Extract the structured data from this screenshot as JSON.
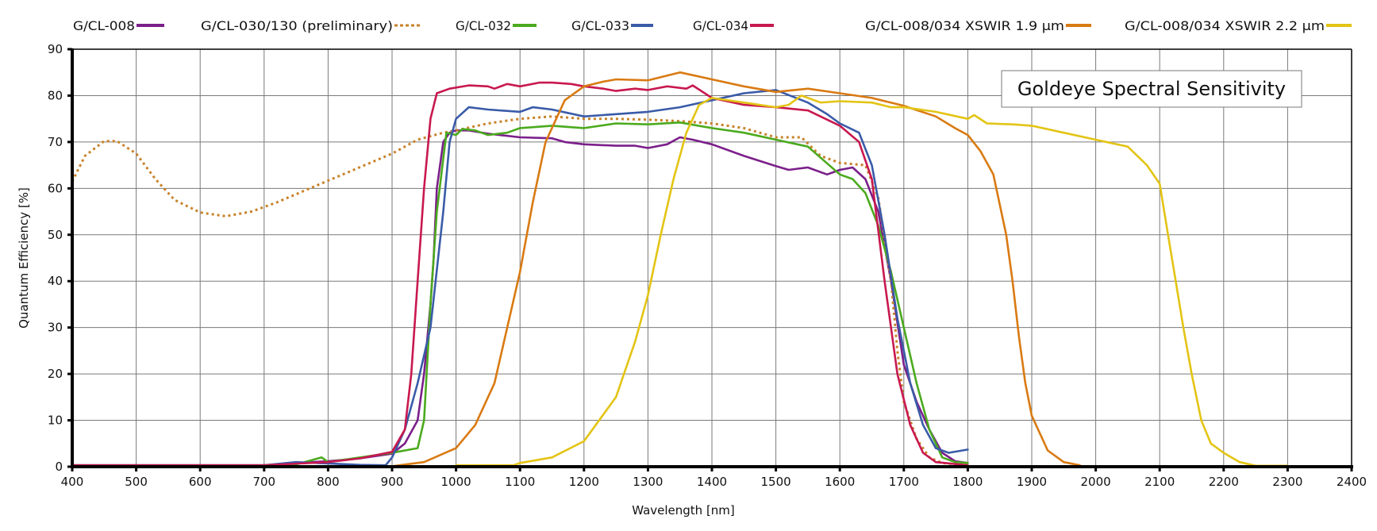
{
  "chart_data": {
    "type": "line",
    "title": "Goldeye Spectral Sensitivity",
    "xlabel": "Wavelength [nm]",
    "ylabel": "Quantum Efficiency [%]",
    "xlim": [
      400,
      2400
    ],
    "ylim": [
      0,
      90
    ],
    "xticks": [
      "400",
      "500",
      "600",
      "700",
      "800",
      "900",
      "1000",
      "1100",
      "1200",
      "1300",
      "1400",
      "1500",
      "1600",
      "1700",
      "1800",
      "1900",
      "2000",
      "2100",
      "2200",
      "2300",
      "2400"
    ],
    "yticks": [
      "0",
      "10",
      "20",
      "30",
      "40",
      "50",
      "60",
      "70",
      "80",
      "90"
    ],
    "grid": true,
    "legend_position": "top",
    "series": [
      {
        "name": "G/CL-008",
        "color": "#7B1F8A",
        "dashed": false,
        "points": [
          [
            400,
            0.3
          ],
          [
            700,
            0.3
          ],
          [
            750,
            0.8
          ],
          [
            800,
            1.2
          ],
          [
            850,
            1.8
          ],
          [
            900,
            2.8
          ],
          [
            920,
            5
          ],
          [
            940,
            10
          ],
          [
            950,
            20
          ],
          [
            960,
            35
          ],
          [
            965,
            45
          ],
          [
            970,
            60
          ],
          [
            980,
            70
          ],
          [
            990,
            72
          ],
          [
            1000,
            72.5
          ],
          [
            1020,
            72.5
          ],
          [
            1050,
            71.8
          ],
          [
            1100,
            71
          ],
          [
            1150,
            70.8
          ],
          [
            1170,
            70
          ],
          [
            1200,
            69.5
          ],
          [
            1250,
            69.2
          ],
          [
            1280,
            69.2
          ],
          [
            1300,
            68.7
          ],
          [
            1330,
            69.5
          ],
          [
            1350,
            71
          ],
          [
            1370,
            70.5
          ],
          [
            1400,
            69.5
          ],
          [
            1450,
            67
          ],
          [
            1500,
            64.8
          ],
          [
            1520,
            64
          ],
          [
            1550,
            64.5
          ],
          [
            1580,
            63
          ],
          [
            1600,
            64
          ],
          [
            1620,
            64.5
          ],
          [
            1640,
            62
          ],
          [
            1660,
            55
          ],
          [
            1680,
            40
          ],
          [
            1700,
            22
          ],
          [
            1720,
            14
          ],
          [
            1740,
            8
          ],
          [
            1760,
            3
          ],
          [
            1780,
            1.2
          ],
          [
            1800,
            0.8
          ]
        ]
      },
      {
        "name": "G/CL-030/130 (preliminary)",
        "color": "#C8822A",
        "dashed": true,
        "points": [
          [
            400,
            61.5
          ],
          [
            420,
            67
          ],
          [
            450,
            70.2
          ],
          [
            470,
            70.2
          ],
          [
            500,
            67.5
          ],
          [
            530,
            62
          ],
          [
            560,
            57.5
          ],
          [
            600,
            54.8
          ],
          [
            640,
            54
          ],
          [
            680,
            55
          ],
          [
            720,
            57
          ],
          [
            780,
            60.5
          ],
          [
            840,
            64
          ],
          [
            900,
            67.5
          ],
          [
            940,
            70.5
          ],
          [
            980,
            72
          ],
          [
            1000,
            72.5
          ],
          [
            1050,
            74
          ],
          [
            1100,
            75
          ],
          [
            1150,
            75.5
          ],
          [
            1200,
            75
          ],
          [
            1250,
            75
          ],
          [
            1300,
            74.8
          ],
          [
            1350,
            74.5
          ],
          [
            1400,
            74
          ],
          [
            1450,
            73
          ],
          [
            1500,
            71
          ],
          [
            1540,
            71
          ],
          [
            1570,
            67
          ],
          [
            1600,
            65.5
          ],
          [
            1640,
            65
          ],
          [
            1660,
            58
          ],
          [
            1680,
            40
          ],
          [
            1690,
            25
          ],
          [
            1700,
            14
          ],
          [
            1720,
            6
          ],
          [
            1740,
            2
          ],
          [
            1760,
            0.8
          ],
          [
            1800,
            0.3
          ]
        ]
      },
      {
        "name": "G/CL-032",
        "color": "#4BAA1E",
        "dashed": false,
        "points": [
          [
            700,
            0
          ],
          [
            750,
            0.5
          ],
          [
            790,
            2
          ],
          [
            800,
            1
          ],
          [
            850,
            2
          ],
          [
            900,
            3
          ],
          [
            940,
            4
          ],
          [
            950,
            10
          ],
          [
            960,
            35
          ],
          [
            970,
            55
          ],
          [
            985,
            72
          ],
          [
            1000,
            71.5
          ],
          [
            1010,
            72.8
          ],
          [
            1030,
            72.5
          ],
          [
            1050,
            71.5
          ],
          [
            1080,
            72
          ],
          [
            1100,
            73
          ],
          [
            1150,
            73.5
          ],
          [
            1200,
            73
          ],
          [
            1250,
            74
          ],
          [
            1300,
            73.8
          ],
          [
            1350,
            74.2
          ],
          [
            1400,
            73
          ],
          [
            1450,
            72
          ],
          [
            1500,
            70.5
          ],
          [
            1550,
            69
          ],
          [
            1600,
            63
          ],
          [
            1620,
            62
          ],
          [
            1640,
            59
          ],
          [
            1660,
            52
          ],
          [
            1680,
            42
          ],
          [
            1700,
            30
          ],
          [
            1720,
            18
          ],
          [
            1740,
            8
          ],
          [
            1760,
            2
          ],
          [
            1780,
            1
          ],
          [
            1800,
            0.8
          ]
        ]
      },
      {
        "name": "G/CL-033",
        "color": "#3A5BA8",
        "dashed": false,
        "points": [
          [
            400,
            0.3
          ],
          [
            700,
            0.3
          ],
          [
            750,
            1
          ],
          [
            800,
            0.7
          ],
          [
            850,
            0.4
          ],
          [
            890,
            0.3
          ],
          [
            900,
            2
          ],
          [
            920,
            8
          ],
          [
            940,
            18
          ],
          [
            960,
            30
          ],
          [
            980,
            55
          ],
          [
            990,
            70
          ],
          [
            1000,
            75
          ],
          [
            1020,
            77.5
          ],
          [
            1050,
            77
          ],
          [
            1100,
            76.5
          ],
          [
            1120,
            77.5
          ],
          [
            1150,
            77
          ],
          [
            1200,
            75.5
          ],
          [
            1250,
            76
          ],
          [
            1300,
            76.5
          ],
          [
            1350,
            77.5
          ],
          [
            1400,
            79
          ],
          [
            1450,
            80.5
          ],
          [
            1500,
            81.2
          ],
          [
            1550,
            78.5
          ],
          [
            1580,
            76
          ],
          [
            1600,
            74
          ],
          [
            1630,
            72
          ],
          [
            1650,
            65
          ],
          [
            1670,
            50
          ],
          [
            1690,
            32
          ],
          [
            1710,
            18
          ],
          [
            1730,
            9
          ],
          [
            1750,
            4
          ],
          [
            1770,
            3
          ],
          [
            1800,
            3.7
          ]
        ]
      },
      {
        "name": "G/CL-034",
        "color": "#C8184F",
        "dashed": false,
        "points": [
          [
            400,
            0.3
          ],
          [
            700,
            0.3
          ],
          [
            800,
            1
          ],
          [
            850,
            1.8
          ],
          [
            900,
            3.2
          ],
          [
            920,
            8
          ],
          [
            930,
            20
          ],
          [
            940,
            40
          ],
          [
            950,
            60
          ],
          [
            960,
            75
          ],
          [
            970,
            80.5
          ],
          [
            990,
            81.5
          ],
          [
            1020,
            82.2
          ],
          [
            1050,
            82
          ],
          [
            1060,
            81.5
          ],
          [
            1080,
            82.5
          ],
          [
            1100,
            82
          ],
          [
            1130,
            82.8
          ],
          [
            1150,
            82.8
          ],
          [
            1180,
            82.5
          ],
          [
            1200,
            82
          ],
          [
            1230,
            81.5
          ],
          [
            1250,
            81
          ],
          [
            1280,
            81.5
          ],
          [
            1300,
            81.2
          ],
          [
            1330,
            82
          ],
          [
            1360,
            81.5
          ],
          [
            1370,
            82.2
          ],
          [
            1400,
            79.5
          ],
          [
            1450,
            78
          ],
          [
            1500,
            77.5
          ],
          [
            1550,
            76.8
          ],
          [
            1600,
            73.5
          ],
          [
            1630,
            70
          ],
          [
            1650,
            62
          ],
          [
            1670,
            40
          ],
          [
            1690,
            20
          ],
          [
            1710,
            9
          ],
          [
            1730,
            3
          ],
          [
            1750,
            1
          ],
          [
            1800,
            0.3
          ]
        ]
      },
      {
        "name": "G/CL-008/034 XSWIR 1.9 µm",
        "color": "#D97A12",
        "dashed": false,
        "points": [
          [
            900,
            0.1
          ],
          [
            950,
            1
          ],
          [
            1000,
            4
          ],
          [
            1030,
            9
          ],
          [
            1060,
            18
          ],
          [
            1080,
            30
          ],
          [
            1100,
            42
          ],
          [
            1120,
            57
          ],
          [
            1140,
            70
          ],
          [
            1170,
            79
          ],
          [
            1200,
            82
          ],
          [
            1230,
            83
          ],
          [
            1250,
            83.5
          ],
          [
            1300,
            83.3
          ],
          [
            1350,
            85
          ],
          [
            1400,
            83.5
          ],
          [
            1450,
            82
          ],
          [
            1500,
            80.8
          ],
          [
            1550,
            81.5
          ],
          [
            1600,
            80.5
          ],
          [
            1650,
            79.5
          ],
          [
            1700,
            77.8
          ],
          [
            1750,
            75.5
          ],
          [
            1780,
            73
          ],
          [
            1800,
            71.5
          ],
          [
            1820,
            68
          ],
          [
            1840,
            63
          ],
          [
            1860,
            50
          ],
          [
            1870,
            40
          ],
          [
            1880,
            28
          ],
          [
            1890,
            18
          ],
          [
            1900,
            11
          ],
          [
            1925,
            3.5
          ],
          [
            1950,
            1
          ],
          [
            1975,
            0.3
          ]
        ]
      },
      {
        "name": "G/CL-008/034 XSWIR 2.2 µm",
        "color": "#E3C414",
        "dashed": false,
        "points": [
          [
            1000,
            0.3
          ],
          [
            1090,
            0.3
          ],
          [
            1100,
            0.8
          ],
          [
            1150,
            2
          ],
          [
            1200,
            5.5
          ],
          [
            1250,
            15
          ],
          [
            1280,
            27
          ],
          [
            1300,
            37
          ],
          [
            1320,
            50
          ],
          [
            1340,
            62
          ],
          [
            1360,
            72
          ],
          [
            1380,
            78
          ],
          [
            1400,
            79.5
          ],
          [
            1450,
            78.5
          ],
          [
            1500,
            77.5
          ],
          [
            1520,
            78
          ],
          [
            1540,
            80
          ],
          [
            1570,
            78.5
          ],
          [
            1600,
            78.8
          ],
          [
            1650,
            78.5
          ],
          [
            1680,
            77.5
          ],
          [
            1700,
            77.5
          ],
          [
            1750,
            76.5
          ],
          [
            1800,
            75
          ],
          [
            1810,
            75.8
          ],
          [
            1830,
            74
          ],
          [
            1870,
            73.8
          ],
          [
            1900,
            73.5
          ],
          [
            1950,
            72
          ],
          [
            2000,
            70.5
          ],
          [
            2050,
            69
          ],
          [
            2080,
            65
          ],
          [
            2100,
            61
          ],
          [
            2113,
            50
          ],
          [
            2125,
            40
          ],
          [
            2137,
            30
          ],
          [
            2150,
            20
          ],
          [
            2165,
            10
          ],
          [
            2180,
            5
          ],
          [
            2200,
            3
          ],
          [
            2225,
            1
          ],
          [
            2250,
            0.2
          ],
          [
            2300,
            0.2
          ]
        ]
      }
    ]
  }
}
